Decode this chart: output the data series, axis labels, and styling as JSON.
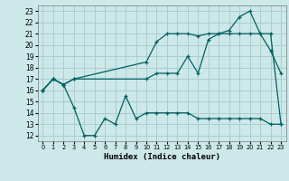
{
  "title": "",
  "xlabel": "Humidex (Indice chaleur)",
  "ylabel": "",
  "x_ticks": [
    0,
    1,
    2,
    3,
    4,
    5,
    6,
    7,
    8,
    9,
    10,
    11,
    12,
    13,
    14,
    15,
    16,
    17,
    18,
    19,
    20,
    21,
    22,
    23
  ],
  "y_ticks": [
    12,
    13,
    14,
    15,
    16,
    17,
    18,
    19,
    20,
    21,
    22,
    23
  ],
  "xlim": [
    -0.5,
    23.5
  ],
  "ylim": [
    11.5,
    23.5
  ],
  "bg_color": "#cce8e8",
  "grid_color": "#aacece",
  "line_color": "#006060",
  "line1_x": [
    0,
    1,
    2,
    3,
    10,
    11,
    12,
    13,
    14,
    15,
    16,
    17,
    18,
    19,
    20,
    21,
    22,
    23
  ],
  "line1_y": [
    16.0,
    17.0,
    16.5,
    17.0,
    18.5,
    20.3,
    21.0,
    21.0,
    21.0,
    20.8,
    21.0,
    21.0,
    21.3,
    22.5,
    23.0,
    21.0,
    19.5,
    17.5
  ],
  "line2_x": [
    0,
    1,
    2,
    3,
    10,
    11,
    12,
    13,
    14,
    15,
    16,
    17,
    18,
    19,
    20,
    21,
    22,
    23
  ],
  "line2_y": [
    16.0,
    17.0,
    16.5,
    17.0,
    17.0,
    17.5,
    17.5,
    17.5,
    19.0,
    17.5,
    20.5,
    21.0,
    21.0,
    21.0,
    21.0,
    21.0,
    21.0,
    13.0
  ],
  "line3_x": [
    0,
    1,
    2,
    3,
    4,
    5,
    6,
    7,
    8,
    9,
    10,
    11,
    12,
    13,
    14,
    15,
    16,
    17,
    18,
    19,
    20,
    21,
    22,
    23
  ],
  "line3_y": [
    16.0,
    17.0,
    16.5,
    14.5,
    12.0,
    12.0,
    13.5,
    13.0,
    15.5,
    13.5,
    14.0,
    14.0,
    14.0,
    14.0,
    14.0,
    13.5,
    13.5,
    13.5,
    13.5,
    13.5,
    13.5,
    13.5,
    13.0,
    13.0
  ]
}
